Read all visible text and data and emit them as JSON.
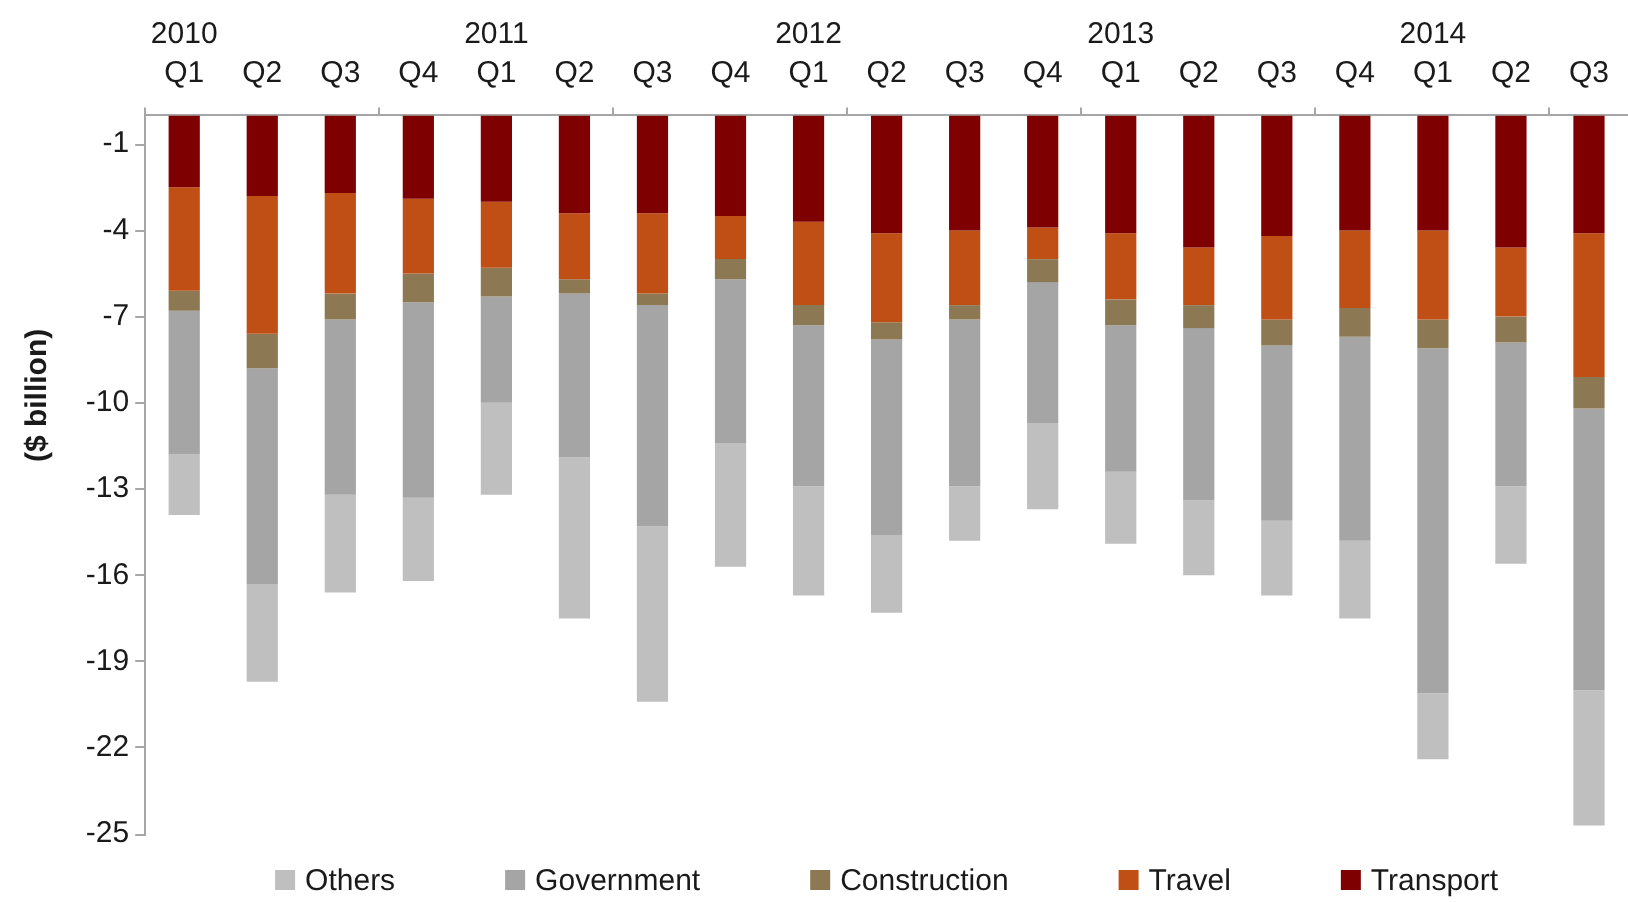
{
  "chart_data": {
    "type": "bar",
    "ylabel": "($ billion)",
    "categories": [
      "2010\nQ1",
      "Q2",
      "Q3",
      "Q4",
      "2011\nQ1",
      "Q2",
      "Q3",
      "Q4",
      "2012\nQ1",
      "Q2",
      "Q3",
      "Q4",
      "2013\nQ1",
      "Q2",
      "Q3",
      "Q4",
      "2014\nQ1",
      "Q2",
      "Q3"
    ],
    "stacked": true,
    "ylim": [
      -25,
      0
    ],
    "yticks": [
      -25,
      -22,
      -19,
      -16,
      -13,
      -10,
      -7,
      -4,
      -1
    ],
    "legend": "bottom",
    "series": [
      {
        "name": "Transport",
        "color": "#7f0000",
        "values": [
          -2.5,
          -2.8,
          -2.7,
          -2.9,
          -3.0,
          -3.4,
          -3.4,
          -3.5,
          -3.7,
          -4.1,
          -4.0,
          -3.9,
          -4.1,
          -4.6,
          -4.2,
          -4.0,
          -4.0,
          -4.6,
          -4.1
        ]
      },
      {
        "name": "Travel",
        "color": "#c04f15",
        "values": [
          -3.6,
          -4.8,
          -3.5,
          -2.6,
          -2.3,
          -2.3,
          -2.8,
          -1.5,
          -2.9,
          -3.1,
          -2.6,
          -1.1,
          -2.3,
          -2.0,
          -2.9,
          -2.7,
          -3.1,
          -2.4,
          -5.0
        ]
      },
      {
        "name": "Construction",
        "color": "#8c7853",
        "values": [
          -0.7,
          -1.2,
          -0.9,
          -1.0,
          -1.0,
          -0.5,
          -0.4,
          -0.7,
          -0.7,
          -0.6,
          -0.5,
          -0.8,
          -0.9,
          -0.8,
          -0.9,
          -1.0,
          -1.0,
          -0.9,
          -1.1
        ]
      },
      {
        "name": "Government",
        "color": "#a5a5a5",
        "values": [
          -5.0,
          -7.5,
          -6.1,
          -6.8,
          -3.7,
          -5.7,
          -7.7,
          -5.7,
          -5.6,
          -6.8,
          -5.8,
          -4.9,
          -5.1,
          -6.0,
          -6.1,
          -7.1,
          -12.0,
          -5.0,
          -9.8
        ]
      },
      {
        "name": "Others",
        "color": "#bfbfbf",
        "values": [
          -2.1,
          -3.4,
          -3.4,
          -2.9,
          -3.2,
          -5.6,
          -6.1,
          -4.3,
          -3.8,
          -2.7,
          -1.9,
          -3.0,
          -2.5,
          -2.6,
          -2.6,
          -2.7,
          -2.3,
          -2.7,
          -4.7
        ]
      }
    ]
  }
}
